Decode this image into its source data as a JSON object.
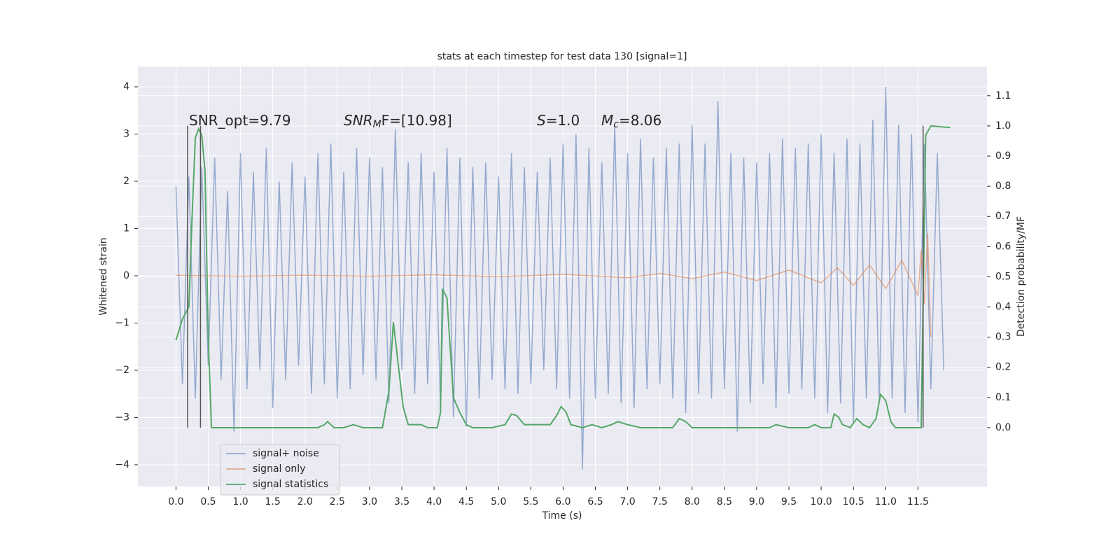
{
  "chart_data": {
    "type": "line",
    "title": "stats at each timestep for test data 130 [signal=1]",
    "xlabel": "Time (s)",
    "ylabel": "Whitened strain",
    "y2label": "Detection probability/MF",
    "annotations": [
      [
        "SNR_opt=9.79"
      ],
      [
        "SNR",
        "M",
        "F=[10.98]"
      ],
      [
        "S",
        "=1.0"
      ],
      [
        "M",
        "c",
        "=8.06"
      ]
    ],
    "xlim": [
      -0.59,
      12.57
    ],
    "ylim": [
      -4.46,
      4.43
    ],
    "y2lim": [
      -0.195,
      1.197
    ],
    "xticks": [
      {
        "value": 0,
        "label": "0.0"
      },
      0.5,
      {
        "value": 1,
        "label": "1.0"
      },
      1.5,
      {
        "value": 2,
        "label": "2.0"
      },
      2.5,
      {
        "value": 3,
        "label": "3.0"
      },
      3.5,
      {
        "value": 4,
        "label": "4.0"
      },
      4.5,
      {
        "value": 5,
        "label": "5.0"
      },
      5.5,
      {
        "value": 6,
        "label": "6.0"
      },
      6.5,
      {
        "value": 7,
        "label": "7.0"
      },
      7.5,
      {
        "value": 8,
        "label": "8.0"
      },
      8.5,
      {
        "value": 9,
        "label": "9.0"
      },
      9.5,
      {
        "value": 10,
        "label": "10.0"
      },
      10.5,
      {
        "value": 11,
        "label": "11.0"
      },
      11.5
    ],
    "yticks": [
      {
        "value": -4,
        "label": "−4"
      },
      {
        "value": -3,
        "label": "−3"
      },
      {
        "value": -2,
        "label": "−2"
      },
      {
        "value": -1,
        "label": "−1"
      },
      0,
      1,
      2,
      3,
      4
    ],
    "y2ticks": [
      {
        "value": 0,
        "label": "0.0"
      },
      0.1,
      0.2,
      0.3,
      0.4,
      0.5,
      0.6,
      0.7,
      0.8,
      0.9,
      {
        "value": 1,
        "label": "1.0"
      },
      1.1
    ],
    "grid": true,
    "legend": "lower left",
    "series": [
      {
        "name": "signal+ noise",
        "color": "#4c72b0",
        "x": [
          0,
          0.1,
          0.2,
          0.3,
          0.4,
          0.5,
          0.6,
          0.7,
          0.8,
          0.9,
          1,
          1.1,
          1.2,
          1.3,
          1.4,
          1.5,
          1.6,
          1.7,
          1.8,
          1.9,
          2,
          2.1,
          2.2,
          2.3,
          2.4,
          2.5,
          2.6,
          2.7,
          2.8,
          2.9,
          3,
          3.1,
          3.2,
          3.3,
          3.4,
          3.5,
          3.6,
          3.7,
          3.8,
          3.9,
          4,
          4.1,
          4.2,
          4.3,
          4.4,
          4.5,
          4.6,
          4.7,
          4.8,
          4.9,
          5,
          5.1,
          5.2,
          5.3,
          5.4,
          5.5,
          5.6,
          5.7,
          5.8,
          5.9,
          6,
          6.1,
          6.2,
          6.3,
          6.4,
          6.5,
          6.6,
          6.7,
          6.8,
          6.9,
          7,
          7.1,
          7.2,
          7.3,
          7.4,
          7.5,
          7.6,
          7.7,
          7.8,
          7.9,
          8,
          8.1,
          8.2,
          8.3,
          8.4,
          8.5,
          8.6,
          8.7,
          8.8,
          8.9,
          9,
          9.1,
          9.2,
          9.3,
          9.4,
          9.5,
          9.6,
          9.7,
          9.8,
          9.9,
          10,
          10.1,
          10.2,
          10.3,
          10.4,
          10.5,
          10.6,
          10.7,
          10.8,
          10.9,
          11,
          11.1,
          11.2,
          11.3,
          11.4,
          11.5,
          11.6,
          11.7,
          11.8,
          11.9
        ],
        "values": [
          1.9,
          -2.3,
          2.1,
          -2.6,
          2.3,
          -1.9,
          2.5,
          -2.2,
          1.8,
          -3.3,
          2.6,
          -2.4,
          2.2,
          -2.0,
          2.7,
          -2.8,
          2.0,
          -2.2,
          2.4,
          -1.9,
          2.1,
          -2.5,
          2.6,
          -2.3,
          2.8,
          -2.6,
          2.2,
          -2.4,
          2.7,
          -2.1,
          2.5,
          -2.2,
          2.3,
          -2.7,
          3.1,
          -2.0,
          2.4,
          -2.5,
          2.6,
          -2.3,
          2.2,
          -2.8,
          2.7,
          -3.0,
          2.5,
          -3.2,
          2.3,
          -2.6,
          2.4,
          -2.2,
          2.1,
          -2.4,
          2.6,
          -2.5,
          2.3,
          -2.3,
          2.2,
          -2.0,
          2.5,
          -2.4,
          2.8,
          -2.6,
          3.0,
          -4.1,
          2.7,
          -2.6,
          2.4,
          -2.5,
          3.2,
          -2.7,
          2.6,
          -2.8,
          2.9,
          -2.4,
          2.5,
          -2.3,
          2.7,
          -2.6,
          2.8,
          -2.9,
          3.2,
          -2.5,
          2.8,
          -2.6,
          3.7,
          -2.4,
          2.6,
          -3.3,
          2.5,
          -2.7,
          2.4,
          -2.3,
          2.6,
          -2.8,
          2.9,
          -2.5,
          2.7,
          -2.4,
          2.8,
          -2.6,
          3.0,
          -2.9,
          2.6,
          -2.7,
          2.9,
          -3.1,
          2.8,
          -2.6,
          3.3,
          -2.7,
          4.0,
          -2.6,
          3.2,
          -2.9,
          3.0,
          -3.1,
          2.8,
          -2.4,
          2.6,
          -2.0
        ]
      },
      {
        "name": "signal only",
        "color": "#dd8452",
        "x": [
          0,
          1,
          2,
          3,
          4,
          5,
          6,
          7,
          7.5,
          8,
          8.5,
          9,
          9.5,
          10,
          10.25,
          10.5,
          10.75,
          11,
          11.25,
          11.5,
          11.55,
          11.6,
          11.65,
          11.7
        ],
        "values": [
          0.01,
          -0.01,
          0.01,
          -0.01,
          0.02,
          -0.02,
          0.03,
          -0.04,
          0.05,
          -0.06,
          0.08,
          -0.1,
          0.12,
          -0.15,
          0.17,
          -0.2,
          0.23,
          -0.27,
          0.33,
          -0.42,
          0.55,
          -0.6,
          0.9,
          -1.3
        ]
      },
      {
        "name": "signal statistics",
        "color": "#55a868",
        "axis": "y2",
        "x": [
          0,
          0.1,
          0.2,
          0.25,
          0.3,
          0.35,
          0.4,
          0.45,
          0.5,
          0.55,
          1,
          1.5,
          2,
          2.2,
          2.3,
          2.35,
          2.45,
          2.6,
          2.75,
          2.9,
          3.2,
          3.3,
          3.37,
          3.45,
          3.52,
          3.6,
          3.7,
          3.8,
          3.9,
          4.05,
          4.1,
          4.13,
          4.2,
          4.3,
          4.4,
          4.5,
          4.6,
          4.9,
          5.1,
          5.2,
          5.28,
          5.4,
          5.6,
          5.8,
          5.9,
          5.97,
          6.05,
          6.12,
          6.3,
          6.45,
          6.6,
          6.75,
          6.85,
          7,
          7.2,
          7.7,
          7.8,
          7.9,
          8,
          8.5,
          9.2,
          9.3,
          9.5,
          9.8,
          9.9,
          10,
          10.15,
          10.2,
          10.27,
          10.33,
          10.45,
          10.55,
          10.65,
          10.75,
          10.85,
          10.92,
          11,
          11.08,
          11.15,
          11.55,
          11.62,
          11.7,
          12
        ],
        "values": [
          0.29,
          0.36,
          0.4,
          0.7,
          0.96,
          0.99,
          0.97,
          0.85,
          0.3,
          0,
          0,
          0,
          0,
          0,
          0.01,
          0.02,
          0,
          0,
          0.01,
          0,
          0,
          0.12,
          0.35,
          0.2,
          0.07,
          0.01,
          0.01,
          0.01,
          0,
          0,
          0.05,
          0.46,
          0.43,
          0.1,
          0.05,
          0.01,
          0,
          0,
          0.01,
          0.045,
          0.04,
          0.01,
          0.01,
          0.01,
          0.04,
          0.07,
          0.05,
          0.01,
          0,
          0.01,
          0,
          0.01,
          0.02,
          0.01,
          0,
          0,
          0.03,
          0.02,
          0,
          0,
          0,
          0.01,
          0,
          0,
          0.01,
          0,
          0,
          0.045,
          0.035,
          0.01,
          0,
          0.03,
          0.01,
          0,
          0.03,
          0.11,
          0.09,
          0.02,
          0,
          0,
          0.97,
          1,
          0.995
        ]
      }
    ],
    "vlines": {
      "x": [
        0.18,
        0.38,
        11.58
      ],
      "y2range": [
        0,
        1
      ]
    }
  }
}
